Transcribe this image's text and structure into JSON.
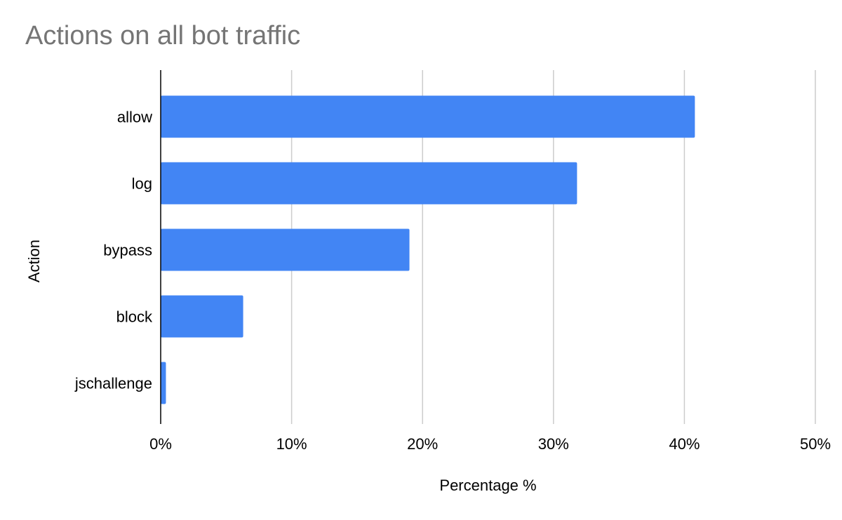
{
  "chart_data": {
    "type": "bar",
    "orientation": "horizontal",
    "title": "Actions on all bot traffic",
    "xlabel": "Percentage %",
    "ylabel": "Action",
    "categories": [
      "allow",
      "log",
      "bypass",
      "block",
      "jschallenge"
    ],
    "values": [
      40.8,
      31.8,
      19.0,
      6.3,
      0.4
    ],
    "xlim": [
      0,
      50
    ],
    "ticks": [
      0,
      10,
      20,
      30,
      40,
      50
    ],
    "tick_labels": [
      "0%",
      "10%",
      "20%",
      "30%",
      "40%",
      "50%"
    ],
    "grid": true,
    "legend": "none",
    "colors": {
      "bar": "#4285f4",
      "grid": "#cccccc",
      "axis": "#000000",
      "title": "#757575"
    }
  }
}
